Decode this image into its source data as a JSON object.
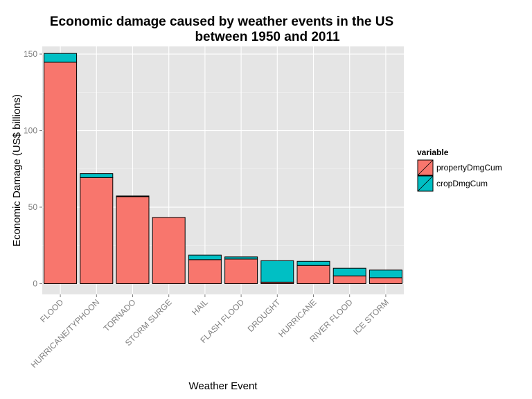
{
  "chart_data": {
    "type": "bar",
    "stacked": true,
    "title_lines": [
      "Economic damage caused by weather events in the US",
      "between 1950 and 2011"
    ],
    "xlabel": "Weather Event",
    "ylabel": "Economic Damage (US$ billions)",
    "categories": [
      "FLOOD",
      "HURRICANE/TYPHOON",
      "TORNADO",
      "STORM SURGE",
      "HAIL",
      "FLASH FLOOD",
      "DROUGHT",
      "HURRICANE",
      "RIVER FLOOD",
      "ICE STORM"
    ],
    "series": [
      {
        "name": "propertyDmgCum",
        "color": "#F8766D",
        "values": [
          144.7,
          69.3,
          56.9,
          43.3,
          15.7,
          16.1,
          1.0,
          11.9,
          5.1,
          3.9
        ]
      },
      {
        "name": "cropDmgCum",
        "color": "#00BFC4",
        "values": [
          5.7,
          2.6,
          0.4,
          0.0,
          3.0,
          1.4,
          14.0,
          2.7,
          5.0,
          5.0
        ]
      }
    ],
    "ylim": [
      -7,
      155
    ],
    "yticks": [
      0,
      50,
      100,
      150
    ],
    "grid": true,
    "legend": {
      "title": "variable",
      "placement": "right"
    }
  }
}
